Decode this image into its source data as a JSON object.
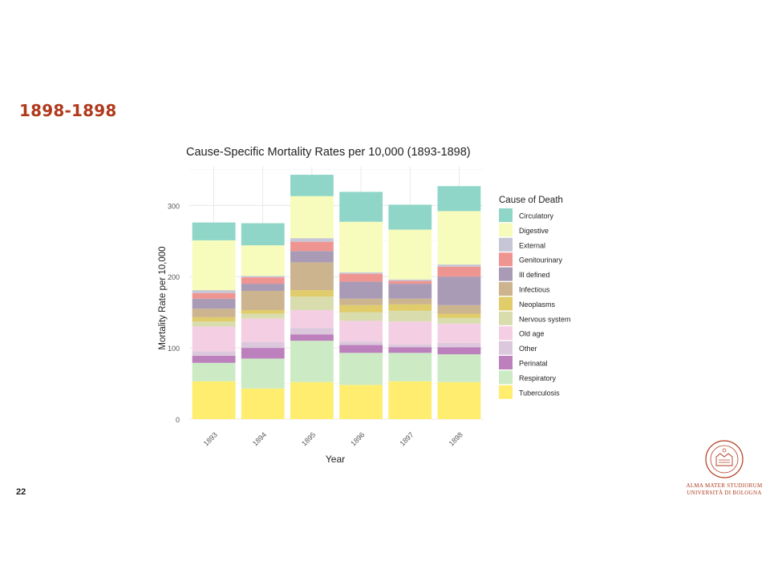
{
  "slide": {
    "title": "1898-1898",
    "page_number": "22"
  },
  "logo": {
    "line1": "ALMA MATER STUDIORUM",
    "line2": "UNIVERSITÀ DI BOLOGNA"
  },
  "colors": {
    "title": "#b0391c",
    "logo": "#b0391c"
  },
  "chart_data": {
    "type": "bar",
    "stacked": true,
    "title": "Cause-Specific Mortality Rates per 10,000 (1893-1898)",
    "xlabel": "Year",
    "ylabel": "Mortality Rate per 10,000",
    "legend_title": "Cause of Death",
    "legend_position": "right",
    "grid": true,
    "ylim": [
      0,
      350
    ],
    "yticks": [
      0,
      100,
      200,
      300
    ],
    "categories": [
      "1893",
      "1894",
      "1895",
      "1896",
      "1897",
      "1898"
    ],
    "series": [
      {
        "name": "Tuberculosis",
        "color": "#ffed6f",
        "values": [
          53,
          43,
          52,
          48,
          53,
          52
        ]
      },
      {
        "name": "Respiratory",
        "color": "#ccebc5",
        "values": [
          26,
          42,
          58,
          45,
          40,
          39
        ]
      },
      {
        "name": "Perinatal",
        "color": "#bc80bd",
        "values": [
          10,
          15,
          9,
          11,
          8,
          10
        ]
      },
      {
        "name": "Other",
        "color": "#dcc8dc",
        "values": [
          6,
          8,
          9,
          5,
          4,
          6
        ]
      },
      {
        "name": "Old age",
        "color": "#f4cfe4",
        "values": [
          35,
          33,
          25,
          29,
          32,
          27
        ]
      },
      {
        "name": "Nervous system",
        "color": "#d9dcad",
        "values": [
          7,
          7,
          19,
          12,
          15,
          8
        ]
      },
      {
        "name": "Neoplasms",
        "color": "#e0cc6a",
        "values": [
          6,
          5,
          9,
          10,
          9,
          6
        ]
      },
      {
        "name": "Infectious",
        "color": "#ccb48e",
        "values": [
          12,
          27,
          39,
          9,
          8,
          12
        ]
      },
      {
        "name": "Ill defined",
        "color": "#a99bb5",
        "values": [
          14,
          10,
          16,
          24,
          21,
          40
        ]
      },
      {
        "name": "Genitourinary",
        "color": "#ef9591",
        "values": [
          8,
          9,
          13,
          11,
          4,
          14
        ]
      },
      {
        "name": "External",
        "color": "#c6c6d6",
        "values": [
          4,
          2,
          5,
          2,
          2,
          3
        ]
      },
      {
        "name": "Digestive",
        "color": "#f7fcbc",
        "values": [
          70,
          43,
          59,
          71,
          70,
          75
        ]
      },
      {
        "name": "Circulatory",
        "color": "#8fd6c8",
        "values": [
          25,
          31,
          30,
          42,
          35,
          35
        ]
      }
    ]
  }
}
